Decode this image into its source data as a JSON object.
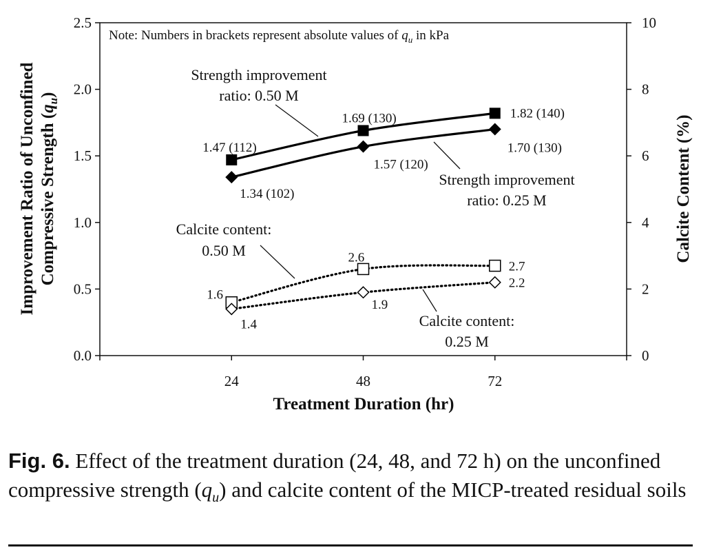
{
  "chart_data": {
    "type": "line",
    "xlabel": "Treatment Duration (hr)",
    "ylabel_left": "Improvement Ratio of Unconfined Compressive Strength (q_u)",
    "ylabel_left_lines": [
      "Improvement Ratio of Unconfined",
      "Compressive Strength ("
    ],
    "ylabel_left_symbol": "q",
    "ylabel_left_subscript": "u",
    "ylabel_left_close": ")",
    "ylabel_right": "Calcite Content (%)",
    "x": [
      24,
      48,
      72
    ],
    "xlim": [
      0,
      96
    ],
    "ylim_left": [
      0,
      2.5
    ],
    "ylim_right": [
      0,
      10
    ],
    "yticks_left": [
      "0.0",
      "0.5",
      "1.0",
      "1.5",
      "2.0",
      "2.5"
    ],
    "yticks_right": [
      "0",
      "2",
      "4",
      "6",
      "8",
      "10"
    ],
    "xticks": [
      "24",
      "48",
      "72"
    ],
    "note": {
      "prefix": "Note: Numbers in brackets represent absolute values of ",
      "symbol": "q",
      "subscript": "u",
      "suffix": " in kPa"
    },
    "series": [
      {
        "id": "strength_050",
        "axis": "left",
        "values": [
          1.47,
          1.69,
          1.82
        ],
        "labels": [
          "1.47 (112)",
          "1.69 (130)",
          "1.82 (140)"
        ],
        "marker": "filled-square",
        "line": "solid",
        "color": "#000000",
        "annotation": [
          "Strength improvement",
          "ratio: 0.50 M"
        ]
      },
      {
        "id": "strength_025",
        "axis": "left",
        "values": [
          1.34,
          1.57,
          1.7
        ],
        "labels": [
          "1.34 (102)",
          "1.57 (120)",
          "1.70 (130)"
        ],
        "marker": "filled-diamond",
        "line": "solid",
        "color": "#000000",
        "annotation": [
          "Strength improvement",
          "ratio: 0.25 M"
        ]
      },
      {
        "id": "calcite_050",
        "axis": "right",
        "values": [
          1.6,
          2.6,
          2.7
        ],
        "labels": [
          "1.6",
          "2.6",
          "2.7"
        ],
        "marker": "open-square",
        "line": "dotted",
        "color": "#000000",
        "annotation": [
          "Calcite content:",
          "0.50 M"
        ]
      },
      {
        "id": "calcite_025",
        "axis": "right",
        "values": [
          1.4,
          1.9,
          2.2
        ],
        "labels": [
          "1.4",
          "1.9",
          "2.2"
        ],
        "marker": "open-diamond",
        "line": "dotted",
        "color": "#000000",
        "annotation": [
          "Calcite content:",
          "0.25 M"
        ]
      }
    ]
  },
  "caption": {
    "label": "Fig. 6.",
    "text_1": " Effect of the treatment duration (24, 48, and 72 h) on the unconfined compressive strength (",
    "symbol": "q",
    "subscript": "u",
    "text_2": ") and calcite content of the MICP-treated residual soils"
  }
}
